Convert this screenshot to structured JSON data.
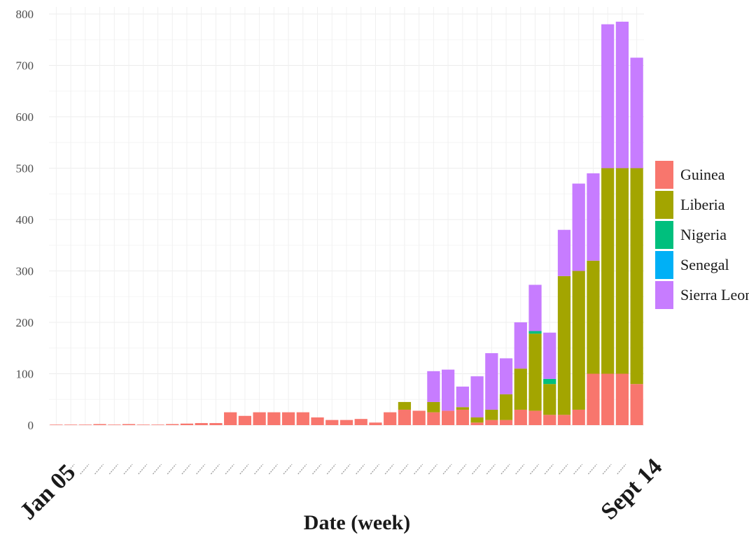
{
  "chart_data": {
    "type": "bar",
    "stacked": true,
    "title": "",
    "xlabel": "Date (week)",
    "ylabel": "",
    "ylim": [
      0,
      800
    ],
    "yticks": [
      0,
      100,
      200,
      300,
      400,
      500,
      600,
      700,
      800
    ],
    "grid": true,
    "legend_position": "right",
    "x_first_label": "Jan 05",
    "x_last_label": "Sept 14",
    "series": [
      {
        "name": "Guinea",
        "color": "#F8766D",
        "values": [
          1,
          1,
          1,
          2,
          1,
          2,
          1,
          1,
          2,
          3,
          4,
          4,
          25,
          18,
          25,
          25,
          25,
          25,
          15,
          10,
          10,
          12,
          5,
          25,
          30,
          28,
          25,
          28,
          30,
          5,
          10,
          10,
          30,
          28,
          20,
          20,
          30,
          100,
          100,
          100,
          80
        ]
      },
      {
        "name": "Liberia",
        "color": "#A3A500",
        "values": [
          0,
          0,
          0,
          0,
          0,
          0,
          0,
          0,
          0,
          0,
          0,
          0,
          0,
          0,
          0,
          0,
          0,
          0,
          0,
          0,
          0,
          0,
          0,
          0,
          15,
          0,
          20,
          0,
          5,
          10,
          20,
          50,
          80,
          150,
          60,
          270,
          270,
          220,
          400,
          400,
          420
        ]
      },
      {
        "name": "Nigeria",
        "color": "#00BF7D",
        "values": [
          0,
          0,
          0,
          0,
          0,
          0,
          0,
          0,
          0,
          0,
          0,
          0,
          0,
          0,
          0,
          0,
          0,
          0,
          0,
          0,
          0,
          0,
          0,
          0,
          0,
          0,
          0,
          0,
          0,
          0,
          0,
          0,
          0,
          5,
          10,
          0,
          0,
          0,
          0,
          0,
          0
        ]
      },
      {
        "name": "Senegal",
        "color": "#00B0F6",
        "values": [
          0,
          0,
          0,
          0,
          0,
          0,
          0,
          0,
          0,
          0,
          0,
          0,
          0,
          0,
          0,
          0,
          0,
          0,
          0,
          0,
          0,
          0,
          0,
          0,
          0,
          0,
          0,
          0,
          0,
          0,
          0,
          0,
          0,
          0,
          0,
          0,
          0,
          0,
          0,
          0,
          0
        ]
      },
      {
        "name": "Sierra Leone",
        "color": "#C77CFF",
        "values": [
          0,
          0,
          0,
          0,
          0,
          0,
          0,
          0,
          0,
          0,
          0,
          0,
          0,
          0,
          0,
          0,
          0,
          0,
          0,
          0,
          0,
          0,
          0,
          0,
          0,
          0,
          60,
          80,
          40,
          80,
          110,
          70,
          90,
          90,
          90,
          90,
          170,
          170,
          280,
          285,
          215
        ]
      }
    ]
  }
}
